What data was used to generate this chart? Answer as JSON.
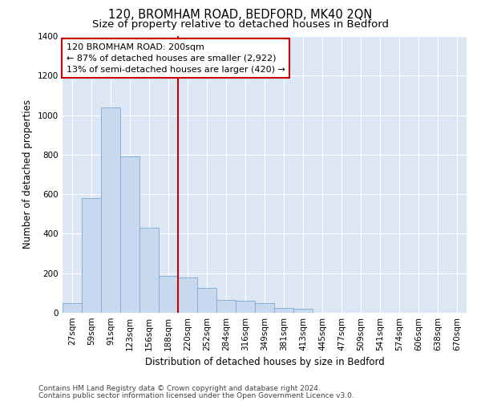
{
  "title": "120, BROMHAM ROAD, BEDFORD, MK40 2QN",
  "subtitle": "Size of property relative to detached houses in Bedford",
  "xlabel": "Distribution of detached houses by size in Bedford",
  "ylabel": "Number of detached properties",
  "categories": [
    "27sqm",
    "59sqm",
    "91sqm",
    "123sqm",
    "156sqm",
    "188sqm",
    "220sqm",
    "252sqm",
    "284sqm",
    "316sqm",
    "349sqm",
    "381sqm",
    "413sqm",
    "445sqm",
    "477sqm",
    "509sqm",
    "541sqm",
    "574sqm",
    "606sqm",
    "638sqm",
    "670sqm"
  ],
  "values": [
    50,
    580,
    1040,
    790,
    430,
    185,
    180,
    125,
    65,
    60,
    50,
    25,
    20,
    0,
    0,
    0,
    0,
    0,
    0,
    0,
    0
  ],
  "bar_color": "#c8d8ee",
  "bar_edge_color": "#7aaad0",
  "ref_line_color": "#cc0000",
  "annotation_line1": "120 BROMHAM ROAD: 200sqm",
  "annotation_line2": "← 87% of detached houses are smaller (2,922)",
  "annotation_line3": "13% of semi-detached houses are larger (420) →",
  "annotation_box_facecolor": "#ffffff",
  "annotation_box_edgecolor": "#cc0000",
  "ylim": [
    0,
    1400
  ],
  "yticks": [
    0,
    200,
    400,
    600,
    800,
    1000,
    1200,
    1400
  ],
  "plot_bg_color": "#dce6f5",
  "grid_color": "#ffffff",
  "footer_line1": "Contains HM Land Registry data © Crown copyright and database right 2024.",
  "footer_line2": "Contains public sector information licensed under the Open Government Licence v3.0.",
  "title_fontsize": 10.5,
  "subtitle_fontsize": 9.5,
  "tick_fontsize": 7.5,
  "ylabel_fontsize": 8.5,
  "xlabel_fontsize": 8.5,
  "annotation_fontsize": 8,
  "footer_fontsize": 6.5
}
